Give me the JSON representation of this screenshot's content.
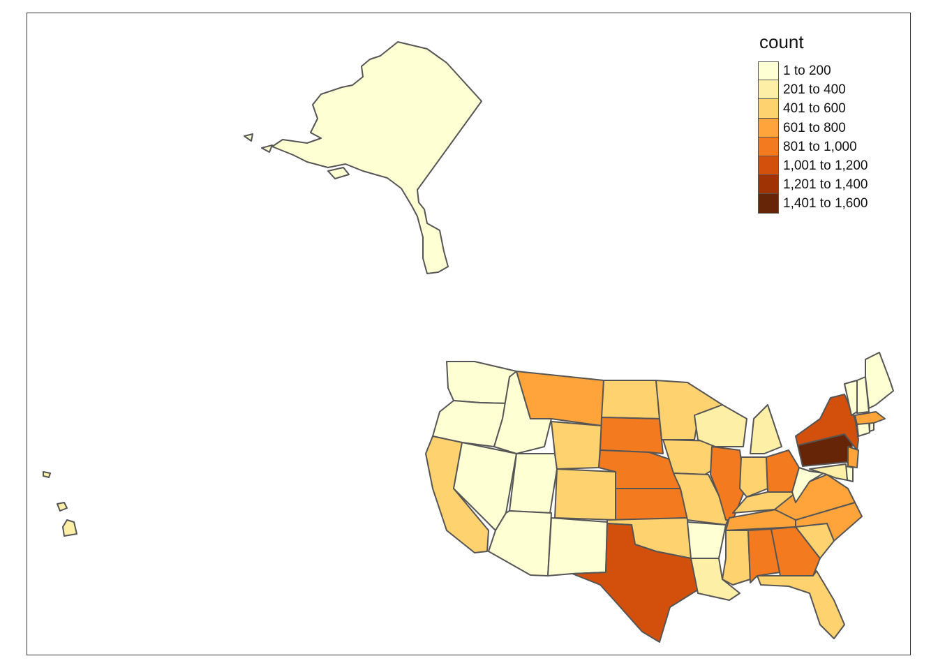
{
  "map": {
    "legend_title": "count",
    "classes": [
      {
        "label": "1 to 200",
        "color": "#FFFFD4"
      },
      {
        "label": "201 to 400",
        "color": "#FEEFA6"
      },
      {
        "label": "401 to 600",
        "color": "#FED26E"
      },
      {
        "label": "601 to 800",
        "color": "#FEA43A"
      },
      {
        "label": "801 to 1,000",
        "color": "#F37A1E"
      },
      {
        "label": "1,001 to 1,200",
        "color": "#D3500C"
      },
      {
        "label": "1,201 to 1,400",
        "color": "#A03304"
      },
      {
        "label": "1,401 to 1,600",
        "color": "#662506"
      }
    ],
    "region_class": {
      "alaska": 0,
      "hawaii": 1,
      "washington": 0,
      "oregon": 0,
      "california": 2,
      "idaho": 0,
      "nevada": 0,
      "utah": 0,
      "arizona": 0,
      "montana": 3,
      "wyoming": 2,
      "colorado": 2,
      "new-mexico": 0,
      "north-dakota": 2,
      "south-dakota": 4,
      "nebraska": 4,
      "kansas": 4,
      "oklahoma": 2,
      "texas": 5,
      "minnesota": 2,
      "iowa": 2,
      "missouri": 2,
      "arkansas": 0,
      "louisiana": 1,
      "wisconsin": 1,
      "illinois": 4,
      "michigan": 1,
      "indiana": 2,
      "ohio": 4,
      "kentucky": 2,
      "tennessee": 3,
      "mississippi": 2,
      "alabama": 4,
      "georgia": 4,
      "florida": 2,
      "south-carolina": 2,
      "north-carolina": 3,
      "virginia": 3,
      "west-virginia": 0,
      "pennsylvania": 7,
      "new-york": 5,
      "new-jersey": 3,
      "delaware": 0,
      "maryland": 1,
      "connecticut": 0,
      "rhode-island": 0,
      "massachusetts": 3,
      "vermont": 0,
      "new-hampshire": 0,
      "maine": 0
    }
  }
}
